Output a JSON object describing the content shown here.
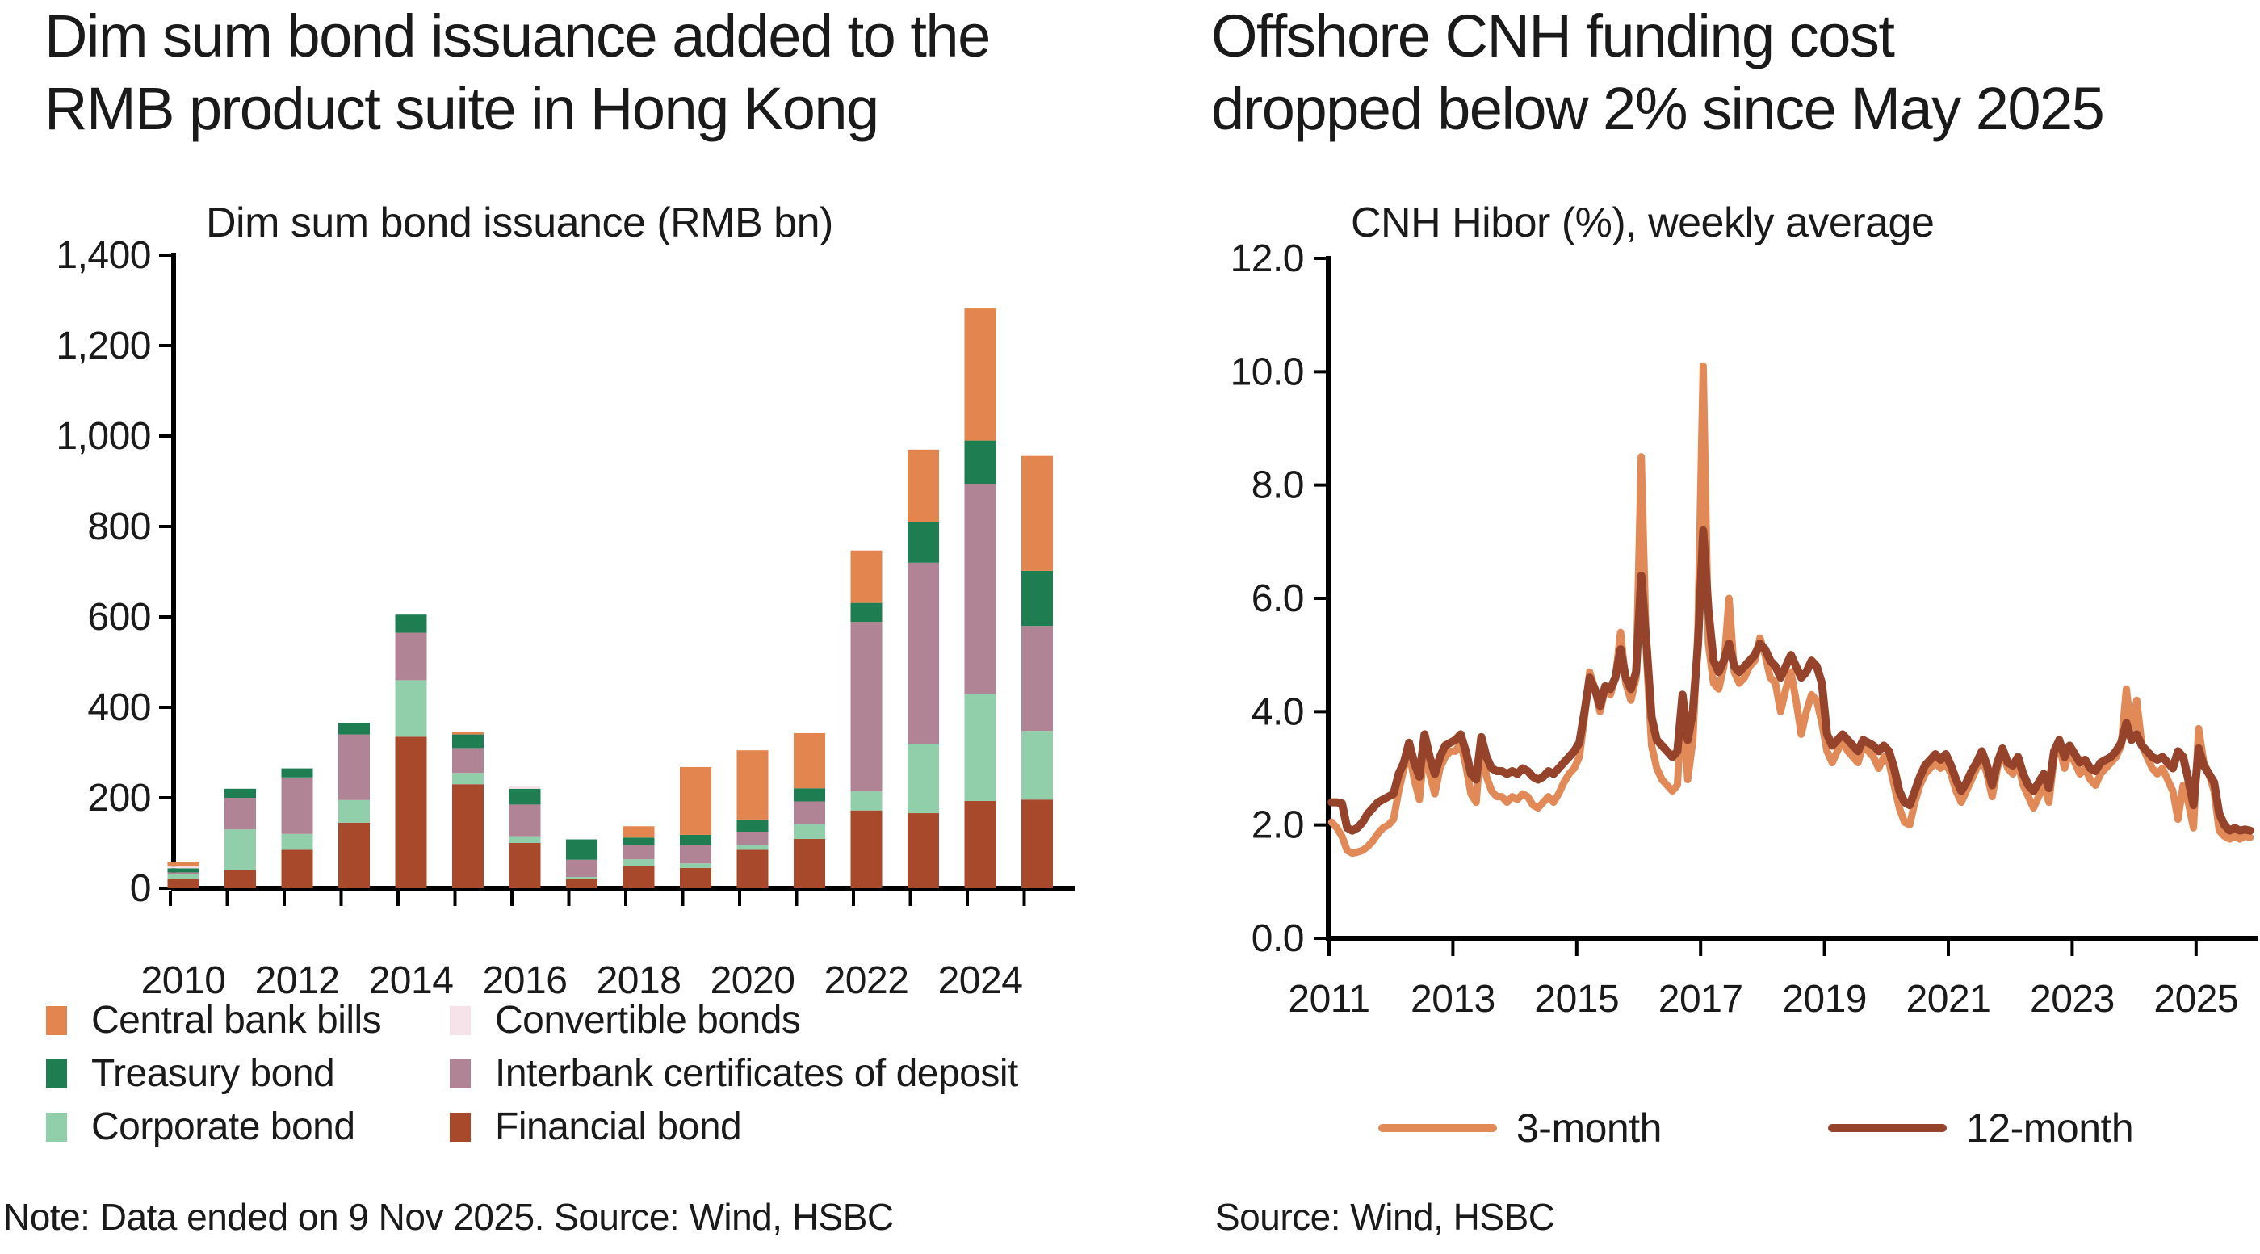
{
  "left_panel": {
    "title_line1": "Dim sum bond issuance added to the",
    "title_line2": "RMB product suite in Hong Kong",
    "note": "Note: Data ended on 9 Nov 2025. Source: Wind, HSBC"
  },
  "right_panel": {
    "title_line1": "Offshore CNH funding cost",
    "title_line2": "dropped below 2% since May 2025",
    "source": "Source: Wind, HSBC"
  },
  "colors": {
    "central_bank_bills": "#E2854E",
    "treasury_bond": "#1F7D52",
    "corporate_bond": "#90CFA9",
    "convertible_bonds": "#F6E2E9",
    "interbank_cd": "#B18495",
    "financial_bond": "#A8492B",
    "line_3m": "#E18A57",
    "line_12m": "#96432B",
    "axis": "#000000",
    "text": "#1a1a1a"
  },
  "chart_data": [
    {
      "type": "bar",
      "stacked": true,
      "title": "Dim sum bond issuance (RMB bn)",
      "ylabel": "",
      "xlabel": "",
      "ylim": [
        0,
        1400
      ],
      "ytick_step": 200,
      "ytick_labels": [
        "0",
        "200",
        "400",
        "600",
        "800",
        "1,000",
        "1,200",
        "1,400"
      ],
      "categories": [
        2010,
        2011,
        2012,
        2013,
        2014,
        2015,
        2016,
        2017,
        2018,
        2019,
        2020,
        2021,
        2022,
        2023,
        2024,
        2025
      ],
      "xtick_labels": [
        "2010",
        "2012",
        "2014",
        "2016",
        "2018",
        "2020",
        "2022",
        "2024"
      ],
      "grid": false,
      "series": [
        {
          "name": "Financial bond",
          "color": "#A8492B",
          "values": [
            20,
            40,
            85,
            145,
            335,
            230,
            100,
            20,
            50,
            45,
            85,
            109,
            172,
            166,
            193,
            196
          ]
        },
        {
          "name": "Corporate bond",
          "color": "#90CFA9",
          "values": [
            11,
            90,
            35,
            50,
            125,
            25,
            15,
            5,
            14,
            10,
            10,
            32,
            42,
            152,
            236,
            152
          ]
        },
        {
          "name": "Interbank certificates of deposit",
          "color": "#B18495",
          "values": [
            4,
            70,
            125,
            145,
            105,
            55,
            70,
            38,
            31,
            40,
            30,
            51,
            375,
            402,
            464,
            232
          ]
        },
        {
          "name": "Treasury bond",
          "color": "#1F7D52",
          "values": [
            9,
            20,
            20,
            25,
            40,
            30,
            35,
            45,
            17,
            23,
            27,
            29,
            42,
            89,
            97,
            122
          ]
        },
        {
          "name": "Convertible bonds",
          "color": "#F6E2E9",
          "values": [
            4,
            0,
            0,
            0,
            0,
            0,
            5,
            0,
            0,
            0,
            0,
            0,
            0,
            0,
            0,
            0
          ]
        },
        {
          "name": "Central bank bills",
          "color": "#E2854E",
          "values": [
            11,
            0,
            0,
            0,
            0,
            5,
            0,
            0,
            25,
            150,
            153,
            122,
            116,
            161,
            292,
            254
          ]
        }
      ],
      "legend": [
        {
          "label": "Central bank bills",
          "color": "#E2854E"
        },
        {
          "label": "Treasury bond",
          "color": "#1F7D52"
        },
        {
          "label": "Corporate bond",
          "color": "#90CFA9"
        },
        {
          "label": "Convertible bonds",
          "color": "#F6E2E9"
        },
        {
          "label": "Interbank certificates of deposit",
          "color": "#B18495"
        },
        {
          "label": "Financial bond",
          "color": "#A8492B"
        }
      ],
      "legend_position": "bottom-left-two-columns"
    },
    {
      "type": "line",
      "title": "CNH Hibor (%), weekly average",
      "ylim": [
        0.0,
        12.0
      ],
      "ytick_step": 2.0,
      "ytick_labels": [
        "0.0",
        "2.0",
        "4.0",
        "6.0",
        "8.0",
        "10.0",
        "12.0"
      ],
      "xlim": [
        2011.0,
        2025.95
      ],
      "xtick_years": [
        2011,
        2013,
        2015,
        2017,
        2019,
        2021,
        2023,
        2025
      ],
      "xtick_labels": [
        "2011",
        "2013",
        "2015",
        "2017",
        "2019",
        "2021",
        "2023",
        "2025"
      ],
      "grid": false,
      "legend_position": "bottom-center",
      "series": [
        {
          "name": "3-month",
          "color": "#E18A57",
          "start_x": 2011.042,
          "step_x": 0.08333,
          "values": [
            2.05,
            1.95,
            1.8,
            1.55,
            1.5,
            1.52,
            1.55,
            1.62,
            1.72,
            1.85,
            1.95,
            2.0,
            2.1,
            2.6,
            3.0,
            3.3,
            2.8,
            2.45,
            3.4,
            2.9,
            2.55,
            3.0,
            3.2,
            3.3,
            3.3,
            3.45,
            3.05,
            2.55,
            2.4,
            3.5,
            2.85,
            2.6,
            2.5,
            2.5,
            2.4,
            2.5,
            2.45,
            2.55,
            2.5,
            2.35,
            2.3,
            2.4,
            2.5,
            2.4,
            2.55,
            2.75,
            2.9,
            3.0,
            3.2,
            3.9,
            4.7,
            4.4,
            4.0,
            4.4,
            4.3,
            4.6,
            5.4,
            4.5,
            4.2,
            4.6,
            8.5,
            5.0,
            3.4,
            3.0,
            2.8,
            2.7,
            2.6,
            2.7,
            4.2,
            2.8,
            3.5,
            5.5,
            10.1,
            5.2,
            4.5,
            4.4,
            4.8,
            6.0,
            4.7,
            4.5,
            4.6,
            4.8,
            4.9,
            5.3,
            5.0,
            4.6,
            4.5,
            4.0,
            4.4,
            4.7,
            4.2,
            3.6,
            4.0,
            4.3,
            4.2,
            3.8,
            3.3,
            3.1,
            3.3,
            3.5,
            3.3,
            3.2,
            3.1,
            3.4,
            3.3,
            3.2,
            3.0,
            3.2,
            3.1,
            2.7,
            2.3,
            2.05,
            2.0,
            2.4,
            2.7,
            2.9,
            3.0,
            3.1,
            3.0,
            3.1,
            2.9,
            2.6,
            2.4,
            2.6,
            2.8,
            3.0,
            3.2,
            2.9,
            2.5,
            3.0,
            3.3,
            3.0,
            2.9,
            3.1,
            2.7,
            2.5,
            2.3,
            2.5,
            2.7,
            2.4,
            3.2,
            3.4,
            3.0,
            3.3,
            3.1,
            2.9,
            3.0,
            2.8,
            2.7,
            2.9,
            3.0,
            3.1,
            3.2,
            3.4,
            4.4,
            3.6,
            4.2,
            3.4,
            3.2,
            3.0,
            2.9,
            3.0,
            2.8,
            2.6,
            2.1,
            2.7,
            2.4,
            1.95,
            3.7,
            3.1,
            2.9,
            2.6,
            1.9,
            1.8,
            1.75,
            1.8,
            1.75,
            1.8,
            1.78
          ]
        },
        {
          "name": "12-month",
          "color": "#96432B",
          "start_x": 2011.042,
          "step_x": 0.08333,
          "values": [
            2.4,
            2.4,
            2.38,
            1.95,
            1.9,
            1.95,
            2.05,
            2.2,
            2.3,
            2.4,
            2.45,
            2.5,
            2.55,
            2.9,
            3.1,
            3.45,
            3.1,
            2.85,
            3.6,
            3.2,
            2.9,
            3.2,
            3.4,
            3.45,
            3.5,
            3.6,
            3.3,
            2.9,
            2.8,
            3.55,
            3.2,
            3.0,
            2.95,
            2.95,
            2.9,
            2.95,
            2.9,
            3.0,
            2.95,
            2.85,
            2.8,
            2.85,
            2.95,
            2.9,
            3.0,
            3.1,
            3.2,
            3.3,
            3.45,
            4.0,
            4.6,
            4.4,
            4.1,
            4.45,
            4.4,
            4.6,
            5.1,
            4.6,
            4.4,
            4.7,
            6.4,
            5.2,
            3.9,
            3.5,
            3.4,
            3.3,
            3.2,
            3.3,
            4.3,
            3.5,
            4.0,
            5.2,
            7.2,
            5.8,
            4.9,
            4.7,
            4.9,
            5.2,
            4.8,
            4.7,
            4.8,
            4.9,
            5.0,
            5.2,
            5.1,
            4.9,
            4.8,
            4.6,
            4.8,
            5.0,
            4.8,
            4.6,
            4.7,
            4.9,
            4.8,
            4.5,
            3.6,
            3.4,
            3.5,
            3.6,
            3.5,
            3.4,
            3.3,
            3.5,
            3.45,
            3.4,
            3.3,
            3.4,
            3.3,
            3.0,
            2.6,
            2.4,
            2.35,
            2.6,
            2.85,
            3.05,
            3.15,
            3.25,
            3.15,
            3.25,
            3.05,
            2.8,
            2.6,
            2.75,
            2.95,
            3.1,
            3.3,
            3.05,
            2.7,
            3.1,
            3.35,
            3.1,
            3.05,
            3.2,
            2.9,
            2.7,
            2.6,
            2.75,
            2.9,
            2.65,
            3.3,
            3.5,
            3.2,
            3.4,
            3.25,
            3.1,
            3.15,
            3.0,
            2.95,
            3.1,
            3.15,
            3.2,
            3.3,
            3.45,
            3.8,
            3.5,
            3.6,
            3.4,
            3.3,
            3.2,
            3.15,
            3.2,
            3.1,
            3.0,
            3.3,
            3.2,
            2.8,
            2.35,
            3.35,
            3.05,
            2.9,
            2.75,
            2.2,
            2.0,
            1.9,
            1.95,
            1.9,
            1.92,
            1.9
          ]
        }
      ],
      "legend": [
        {
          "label": "3-month",
          "color": "#E18A57"
        },
        {
          "label": "12-month",
          "color": "#96432B"
        }
      ]
    }
  ]
}
